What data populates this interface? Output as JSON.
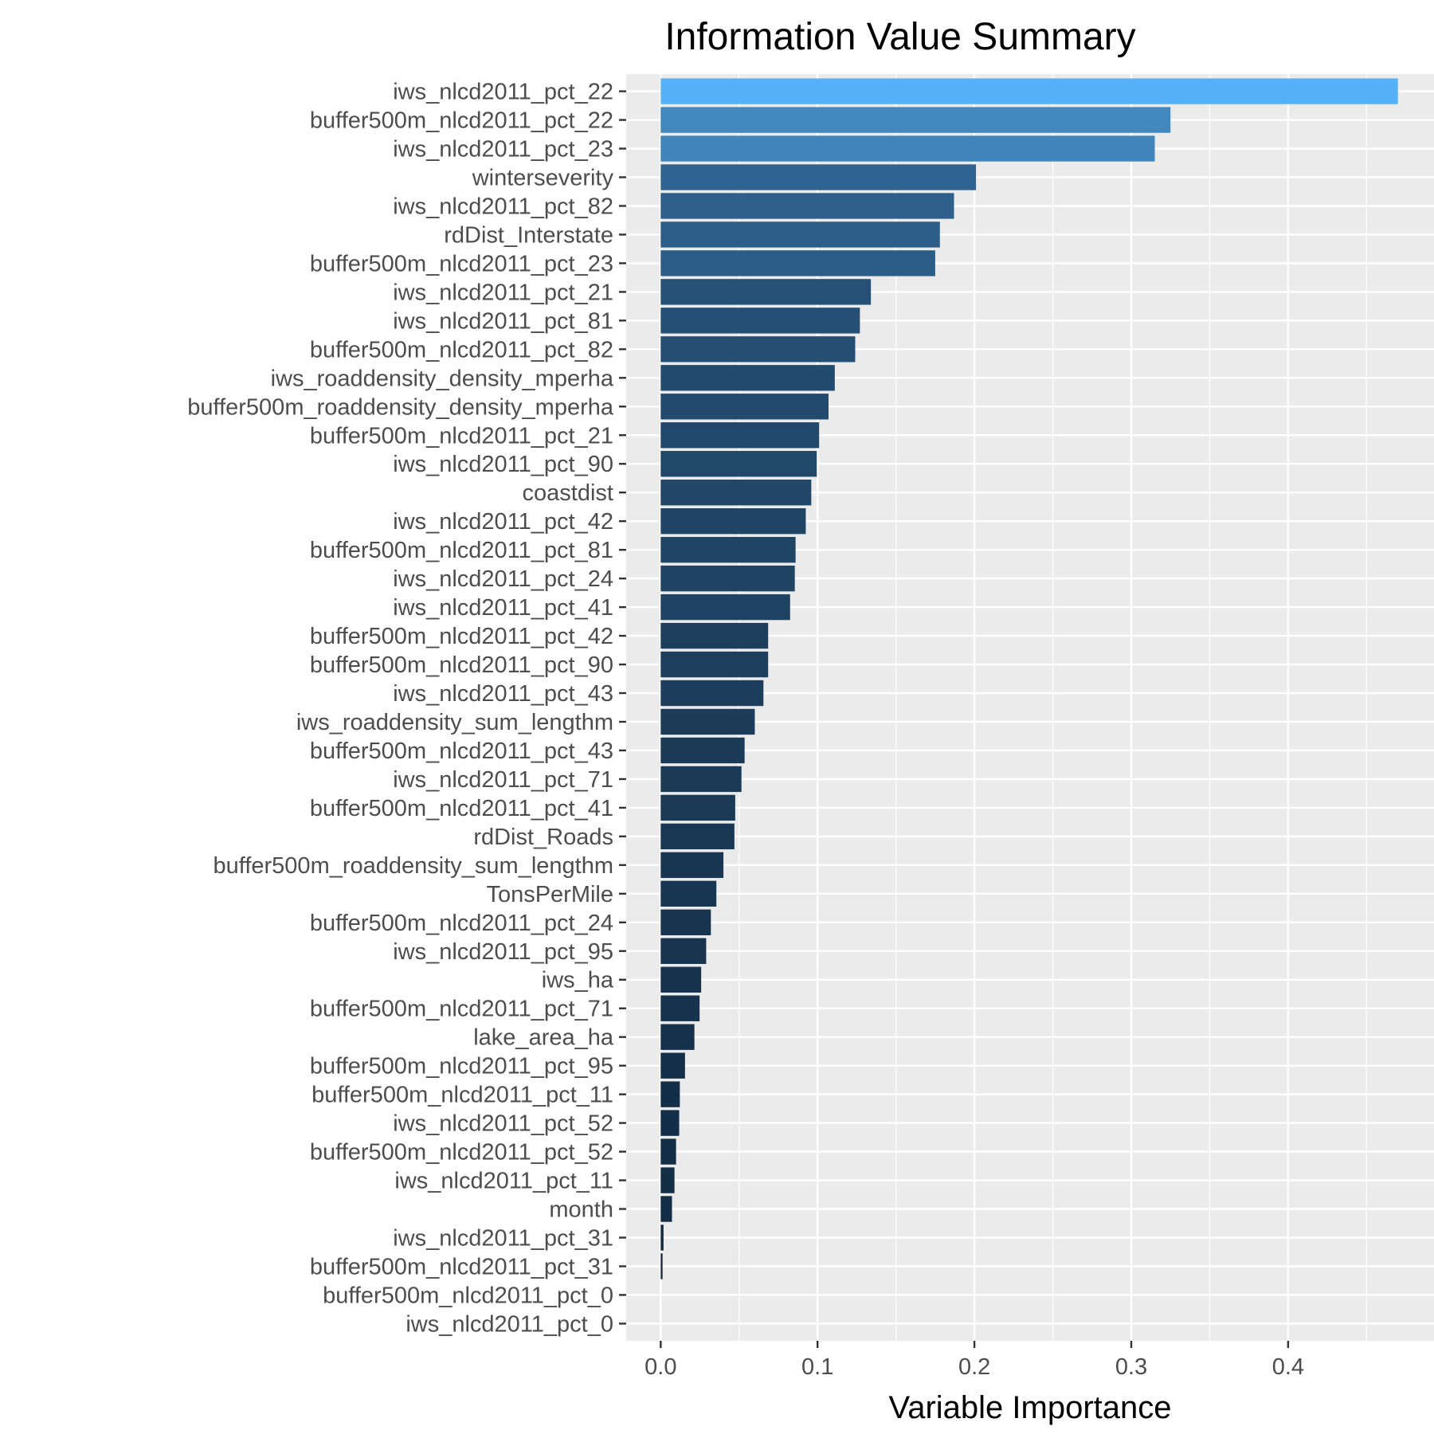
{
  "chart_data": {
    "type": "bar",
    "orientation": "horizontal",
    "title": "Information Value Summary",
    "xlabel": "Variable Importance",
    "ylabel": "",
    "xlim": [
      -0.022,
      0.493
    ],
    "x_ticks": [
      "0.0",
      "0.1",
      "0.2",
      "0.3",
      "0.4"
    ],
    "x_tick_values": [
      0,
      0.1,
      0.2,
      0.3,
      0.4
    ],
    "grid": true,
    "legend": "none",
    "fill_scale": {
      "low": "#132B43",
      "high": "#56B1F7"
    },
    "categories": [
      "iws_nlcd2011_pct_22",
      "buffer500m_nlcd2011_pct_22",
      "iws_nlcd2011_pct_23",
      "winterseverity",
      "iws_nlcd2011_pct_82",
      "rdDist_Interstate",
      "buffer500m_nlcd2011_pct_23",
      "iws_nlcd2011_pct_21",
      "iws_nlcd2011_pct_81",
      "buffer500m_nlcd2011_pct_82",
      "iws_roaddensity_density_mperha",
      "buffer500m_roaddensity_density_mperha",
      "buffer500m_nlcd2011_pct_21",
      "iws_nlcd2011_pct_90",
      "coastdist",
      "iws_nlcd2011_pct_42",
      "buffer500m_nlcd2011_pct_81",
      "iws_nlcd2011_pct_24",
      "iws_nlcd2011_pct_41",
      "buffer500m_nlcd2011_pct_42",
      "buffer500m_nlcd2011_pct_90",
      "iws_nlcd2011_pct_43",
      "iws_roaddensity_sum_lengthm",
      "buffer500m_nlcd2011_pct_43",
      "iws_nlcd2011_pct_71",
      "buffer500m_nlcd2011_pct_41",
      "rdDist_Roads",
      "buffer500m_roaddensity_sum_lengthm",
      "TonsPerMile",
      "buffer500m_nlcd2011_pct_24",
      "iws_nlcd2011_pct_95",
      "iws_ha",
      "buffer500m_nlcd2011_pct_71",
      "lake_area_ha",
      "buffer500m_nlcd2011_pct_95",
      "buffer500m_nlcd2011_pct_11",
      "iws_nlcd2011_pct_52",
      "buffer500m_nlcd2011_pct_52",
      "iws_nlcd2011_pct_11",
      "month",
      "iws_nlcd2011_pct_31",
      "buffer500m_nlcd2011_pct_31",
      "buffer500m_nlcd2011_pct_0",
      "iws_nlcd2011_pct_0"
    ],
    "values": [
      0.47,
      0.325,
      0.315,
      0.201,
      0.187,
      0.178,
      0.175,
      0.134,
      0.127,
      0.124,
      0.111,
      0.107,
      0.101,
      0.0995,
      0.096,
      0.0925,
      0.086,
      0.0855,
      0.0825,
      0.0685,
      0.0685,
      0.0655,
      0.06,
      0.0535,
      0.0515,
      0.0475,
      0.047,
      0.04,
      0.0355,
      0.032,
      0.029,
      0.0258,
      0.0248,
      0.0215,
      0.0155,
      0.0122,
      0.0118,
      0.0098,
      0.0088,
      0.0072,
      0.0018,
      0.0012,
      0.0,
      0.0
    ]
  }
}
